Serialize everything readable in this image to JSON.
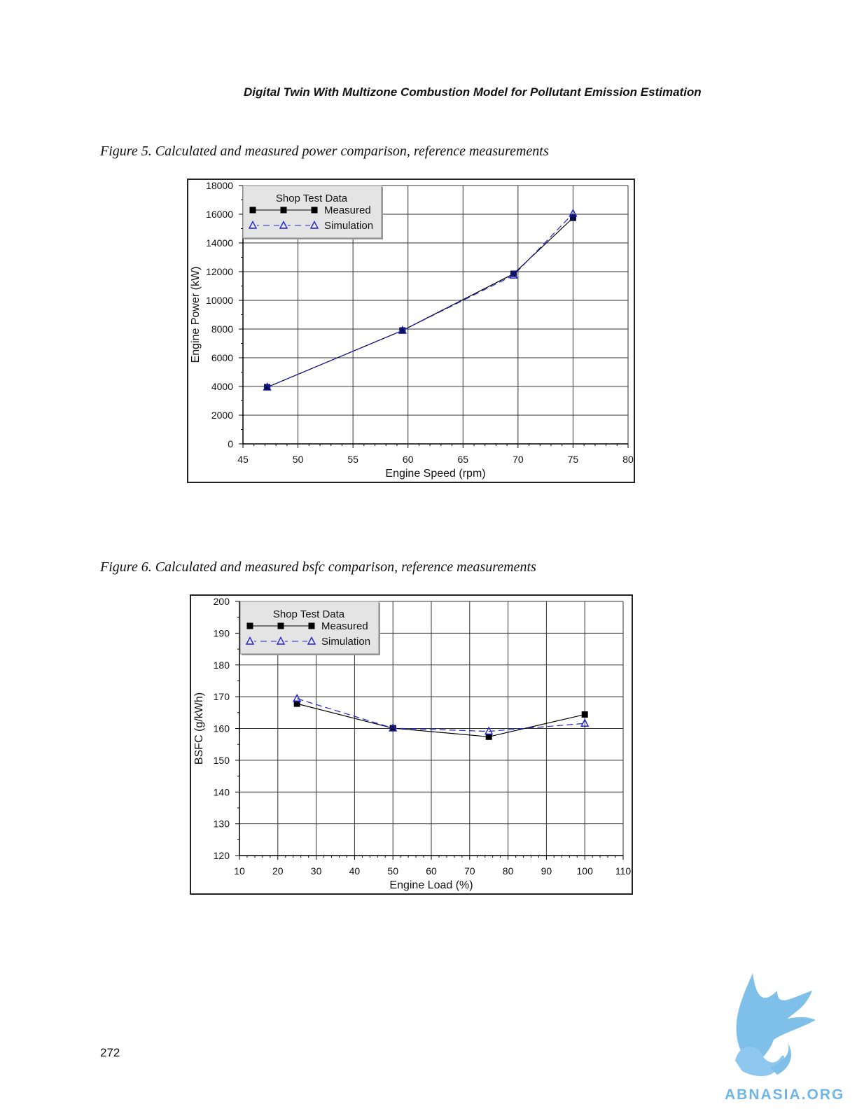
{
  "header": {
    "running_title": "Digital Twin With Multizone Combustion Model for Pollutant Emission Estimation"
  },
  "figures": [
    {
      "caption": "Figure 5. Calculated and measured power comparison, reference measurements"
    },
    {
      "caption": "Figure 6. Calculated and measured bsfc comparison, reference measurements"
    }
  ],
  "chart_data": [
    {
      "type": "line",
      "title": "",
      "xlabel": "Engine Speed (rpm)",
      "ylabel": "Engine Power (kW)",
      "xlim": [
        45,
        80
      ],
      "ylim": [
        0,
        18000
      ],
      "xticks": [
        45,
        50,
        55,
        60,
        65,
        70,
        75,
        80
      ],
      "yticks": [
        0,
        2000,
        4000,
        6000,
        8000,
        10000,
        12000,
        14000,
        16000,
        18000
      ],
      "grid": true,
      "legend": {
        "title": "Shop Test Data",
        "placement": "top-left"
      },
      "series": [
        {
          "name": "Measured",
          "marker": "square",
          "color": "#000000",
          "x": [
            47.2,
            59.5,
            69.6,
            75.0
          ],
          "y": [
            3950,
            7900,
            11850,
            15750
          ]
        },
        {
          "name": "Simulation",
          "marker": "triangle",
          "color": "#2323d0",
          "x": [
            47.2,
            59.5,
            69.6,
            75.0
          ],
          "y": [
            3950,
            7900,
            11750,
            16050
          ]
        }
      ]
    },
    {
      "type": "line",
      "title": "",
      "xlabel": "Engine Load (%)",
      "ylabel": "BSFC (g/kWh)",
      "xlim": [
        10,
        110
      ],
      "ylim": [
        120,
        200
      ],
      "xticks": [
        10,
        20,
        30,
        40,
        50,
        60,
        70,
        80,
        90,
        100,
        110
      ],
      "yticks": [
        120,
        130,
        140,
        150,
        160,
        170,
        180,
        190,
        200
      ],
      "grid": true,
      "legend": {
        "title": "Shop Test Data",
        "placement": "top-left"
      },
      "series": [
        {
          "name": "Measured",
          "marker": "square",
          "color": "#000000",
          "x": [
            25,
            50,
            75,
            100
          ],
          "y": [
            167.8,
            160.1,
            157.4,
            164.4
          ]
        },
        {
          "name": "Simulation",
          "marker": "triangle",
          "color": "#2323d0",
          "x": [
            25,
            50,
            75,
            100
          ],
          "y": [
            169.4,
            160.1,
            159.1,
            161.6
          ]
        }
      ]
    }
  ],
  "page_number": "272",
  "logo": {
    "text": "ABNASIA.ORG",
    "color": "#6fb6e6"
  }
}
